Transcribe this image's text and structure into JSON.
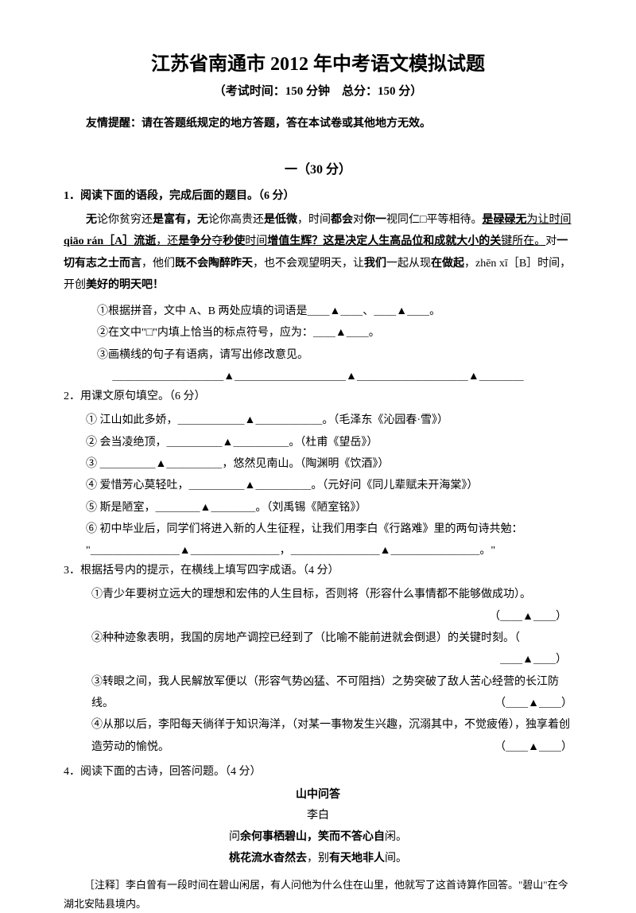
{
  "doc": {
    "title": "江苏省南通市 2012 年中考语文模拟试题",
    "subtitle": "（考试时间：150 分钟　总分：150 分）",
    "notice": "友情提醒：请在答题纸规定的地方答题，答在本试卷或其他地方无效。",
    "section1": "一（30 分）"
  },
  "q1": {
    "heading": "1．阅读下面的语段，完成后面的题目。（6 分）",
    "p_pre": "无",
    "p1": "论你贫穷还",
    "p1b": "是富有，无",
    "p1c": "论你高",
    "p1d": "贵还",
    "p1e": "是低微",
    "p1f": "，时间",
    "p1g": "都会",
    "p1h": "对",
    "p1i": "你一",
    "p1j": "视同仁□平等相待。",
    "p2u": "是碌碌无",
    "p2a": "为",
    "p2b": "让时间",
    "p2c": " qiāo rán［A］流逝",
    "p2d": "，还",
    "p2e": "是争分",
    "p2f": "夺",
    "p2g": "秒使",
    "p2h": "时间",
    "p2i": "增值生辉？这",
    "p2j": "是决定人生高品位和成就大小的关",
    "p2k": "键所在。",
    "p2l": "对",
    "p2m": "一切有志之士而言",
    "p2n": "，他们",
    "p2o": "既不会陶醉昨天",
    "p2p": "，也不会",
    "p2q": "观望明天",
    "p2r": "，让",
    "p2s": "我们",
    "p3a": "一起从",
    "p3b": "现",
    "p3c": "在做起",
    "p3d": "，zhēn xī［B］时间，开",
    "p3e": "创",
    "p3f": "美好的明天吧！",
    "s1": "①根据拼音，文中 A、B 两处应填的词语是＿＿▲＿＿、＿＿▲＿＿。",
    "s2": "②在文中\"□\"内填上恰当的标点符号，应为：＿＿▲＿＿。",
    "s3": "③画横线的句子有语病，请写出修改意见。",
    "s3blank": "＿＿＿＿＿＿＿＿＿＿▲＿＿＿＿＿＿＿＿＿＿▲＿＿＿＿＿＿＿＿＿＿▲＿＿＿＿"
  },
  "q2": {
    "heading": "2．用课文原句填空。（6 分）",
    "i1": "① 江山如此多娇，＿＿＿＿＿＿▲＿＿＿＿＿＿。（毛泽东《沁园春·雪》）",
    "i2": "② 会当凌绝顶，＿＿＿＿＿▲＿＿＿＿＿。（杜甫《望岳》）",
    "i3": "③ ＿＿＿＿＿▲＿＿＿＿＿，悠然见南山。（陶渊明《饮酒》）",
    "i4": "④ 爱惜芳心莫轻吐，＿＿＿＿＿▲＿＿＿＿＿。（元好问《同儿辈赋未开海棠》）",
    "i5": "⑤ 斯是陋室，＿＿＿＿▲＿＿＿＿。（刘禹锡《陋室铭》）",
    "i6": "⑥ 初中毕业后，同学们将进入新的人生征程，让我们用李白《行路难》里的两句诗共勉：",
    "i6b": "\"＿＿＿＿＿＿＿＿▲＿＿＿＿＿＿＿＿，＿＿＿＿＿＿＿＿▲＿＿＿＿＿＿＿＿。\""
  },
  "q3": {
    "heading": "3．根据括号内的提示，在横线上填写四字成语。（4 分）",
    "i1": "①青少年要树立远大的理想和宏伟的人生目标，否则将（形容什么事情都不能够做成功）。",
    "ans": "（＿＿▲＿＿）",
    "i2": "②种种迹象表明，我国的房地产调控已经到了（比喻不能前进就会倒退）的关键时刻。（",
    "i2b": "＿＿▲＿＿）",
    "i3": "③转眼之间，我人民解放军便以（形容气势凶猛、不可阻挡）之势突破了敌人苦心经营的长江防线。",
    "i4": "④从那以后，李阳每天徜徉于知识海洋，（对某一事物发生兴趣，沉溺其中，不觉疲倦），独享着创造劳动的愉悦。"
  },
  "q4": {
    "heading": "4．阅读下面的古诗，回答问题。（4 分）",
    "title": "山中问答",
    "author": "李白",
    "l1a": "问",
    "l1b": "余何事栖碧山，笑而不答心自",
    "l1c": "闲。",
    "l2a": "桃花流水杳然去",
    "l2b": "，别",
    "l2c": "有天地非人",
    "l2d": "间。",
    "note": "［注释］李白曾有一段时间在碧山闲居，有人问他为什么住在山里，他就写了这首诗算作回答。\"碧山\"在今湖北安陆县境内。"
  }
}
